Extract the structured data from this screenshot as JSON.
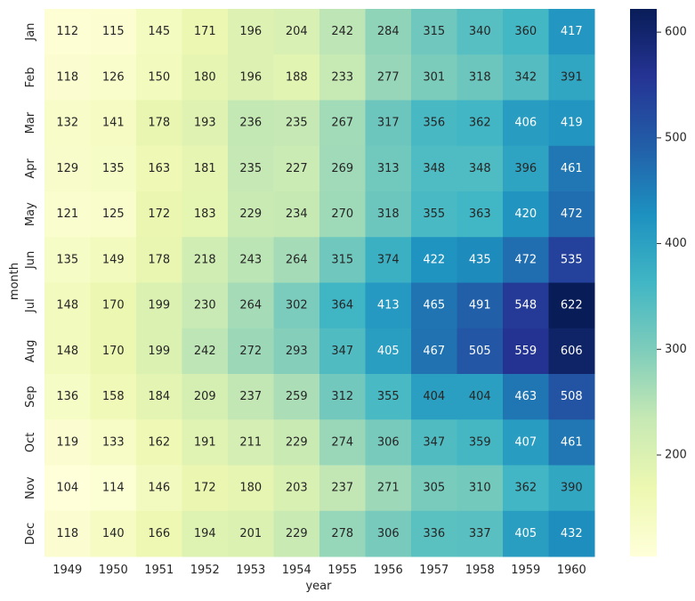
{
  "chart_data": {
    "type": "heatmap",
    "xlabel": "year",
    "ylabel": "month",
    "x_categories": [
      "1949",
      "1950",
      "1951",
      "1952",
      "1953",
      "1954",
      "1955",
      "1956",
      "1957",
      "1958",
      "1959",
      "1960"
    ],
    "y_categories": [
      "Jan",
      "Feb",
      "Mar",
      "Apr",
      "May",
      "Jun",
      "Jul",
      "Aug",
      "Sep",
      "Oct",
      "Nov",
      "Dec"
    ],
    "values": [
      [
        112,
        115,
        145,
        171,
        196,
        204,
        242,
        284,
        315,
        340,
        360,
        417
      ],
      [
        118,
        126,
        150,
        180,
        196,
        188,
        233,
        277,
        301,
        318,
        342,
        391
      ],
      [
        132,
        141,
        178,
        193,
        236,
        235,
        267,
        317,
        356,
        362,
        406,
        419
      ],
      [
        129,
        135,
        163,
        181,
        235,
        227,
        269,
        313,
        348,
        348,
        396,
        461
      ],
      [
        121,
        125,
        172,
        183,
        229,
        234,
        270,
        318,
        355,
        363,
        420,
        472
      ],
      [
        135,
        149,
        178,
        218,
        243,
        264,
        315,
        374,
        422,
        435,
        472,
        535
      ],
      [
        148,
        170,
        199,
        230,
        264,
        302,
        364,
        413,
        465,
        491,
        548,
        622
      ],
      [
        148,
        170,
        199,
        242,
        272,
        293,
        347,
        405,
        467,
        505,
        559,
        606
      ],
      [
        136,
        158,
        184,
        209,
        237,
        259,
        312,
        355,
        404,
        404,
        463,
        508
      ],
      [
        119,
        133,
        162,
        191,
        211,
        229,
        274,
        306,
        347,
        359,
        407,
        461
      ],
      [
        104,
        114,
        146,
        172,
        180,
        203,
        237,
        271,
        305,
        310,
        362,
        390
      ],
      [
        118,
        140,
        166,
        194,
        201,
        229,
        278,
        306,
        336,
        337,
        405,
        432
      ]
    ],
    "colormap": "YlGnBu",
    "color_stops": [
      "#ffffd9",
      "#edf8b1",
      "#c7e9b4",
      "#7fcdbb",
      "#41b6c4",
      "#1d91c0",
      "#225ea8",
      "#253494",
      "#081d58"
    ],
    "vmin": 104,
    "vmax": 622,
    "colorbar_ticks": [
      "200",
      "300",
      "400",
      "500",
      "600"
    ],
    "annotations": true,
    "grid": false
  }
}
